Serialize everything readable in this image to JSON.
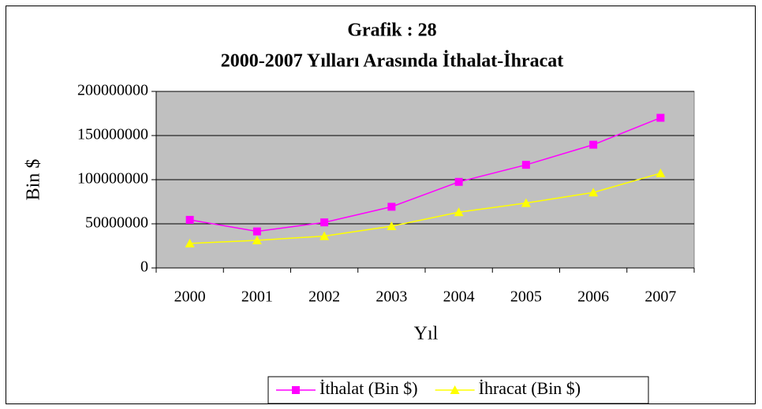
{
  "chart_data": {
    "type": "line",
    "title": "Grafik : 28",
    "subtitle": "2000-2007 Yılları Arasında İthalat-İhracat",
    "x_label": "Yıl",
    "y_label": "Bin $",
    "categories": [
      "2000",
      "2001",
      "2002",
      "2003",
      "2004",
      "2005",
      "2006",
      "2007"
    ],
    "series": [
      {
        "name": "İthalat (Bin $)",
        "color": "#ff00ff",
        "marker": "square",
        "values": [
          54500000,
          41400000,
          51600000,
          69300000,
          97500000,
          116800000,
          139600000,
          170100000
        ]
      },
      {
        "name": "İhracat (Bin $)",
        "color": "#ffff00",
        "marker": "triangle",
        "values": [
          27800000,
          31300000,
          36100000,
          47300000,
          63200000,
          73500000,
          85500000,
          107300000
        ]
      }
    ],
    "ylim": [
      0,
      200000000
    ],
    "yticks": [
      0,
      50000000,
      100000000,
      150000000,
      200000000
    ],
    "grid": true,
    "plot_background": "#c0c0c0",
    "legend": "bottom"
  }
}
